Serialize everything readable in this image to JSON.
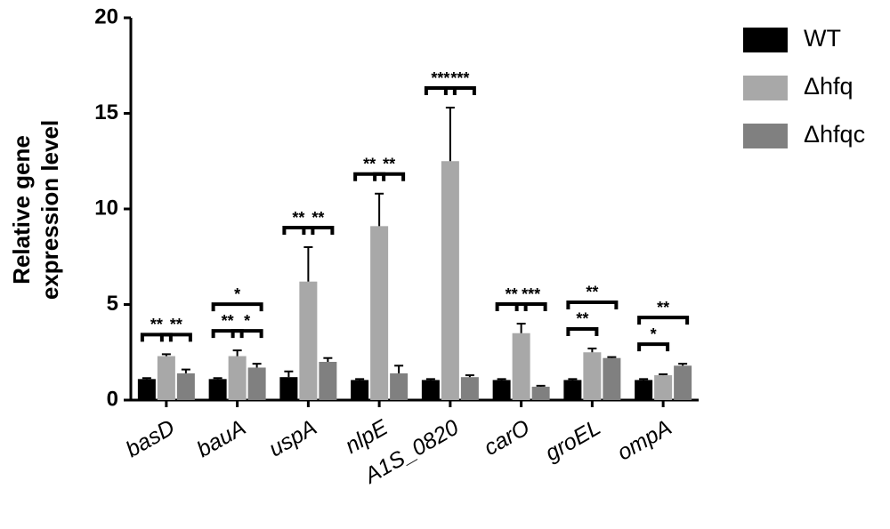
{
  "chart_data": {
    "type": "bar",
    "y_label": [
      "Relative gene",
      "expression level"
    ],
    "categories": [
      "basD",
      "bauA",
      "uspA",
      "nlpE",
      "A1S_0820",
      "carO",
      "groEL",
      "ompA"
    ],
    "series": [
      {
        "name": "WT",
        "color": "#000000",
        "values": [
          1.1,
          1.1,
          1.2,
          1.05,
          1.05,
          1.05,
          1.05,
          1.05
        ],
        "errors": [
          0.05,
          0.05,
          0.3,
          0.05,
          0.05,
          0.05,
          0.05,
          0.05
        ]
      },
      {
        "name": "Δhfq",
        "color": "#a8a8a8",
        "values": [
          2.3,
          2.3,
          6.2,
          9.1,
          12.5,
          3.5,
          2.5,
          1.3
        ],
        "errors": [
          0.1,
          0.3,
          1.8,
          1.7,
          2.8,
          0.5,
          0.2,
          0.05
        ]
      },
      {
        "name": "Δhfqc",
        "color": "#808080",
        "values": [
          1.4,
          1.7,
          2.0,
          1.4,
          1.2,
          0.7,
          2.2,
          1.8
        ],
        "errors": [
          0.2,
          0.2,
          0.2,
          0.4,
          0.1,
          0.05,
          0.05,
          0.1
        ]
      }
    ],
    "significance": [
      {
        "category": "basD",
        "pair": [
          "WT",
          "Δhfq"
        ],
        "label": "**"
      },
      {
        "category": "basD",
        "pair": [
          "Δhfq",
          "Δhfqc"
        ],
        "label": "**"
      },
      {
        "category": "bauA",
        "pair": [
          "WT",
          "Δhfq"
        ],
        "label": "**"
      },
      {
        "category": "bauA",
        "pair": [
          "Δhfq",
          "Δhfqc"
        ],
        "label": "*"
      },
      {
        "category": "bauA",
        "pair": [
          "WT",
          "Δhfqc"
        ],
        "label": "*"
      },
      {
        "category": "uspA",
        "pair": [
          "WT",
          "Δhfq"
        ],
        "label": "**"
      },
      {
        "category": "uspA",
        "pair": [
          "Δhfq",
          "Δhfqc"
        ],
        "label": "**"
      },
      {
        "category": "nlpE",
        "pair": [
          "WT",
          "Δhfq"
        ],
        "label": "**"
      },
      {
        "category": "nlpE",
        "pair": [
          "Δhfq",
          "Δhfqc"
        ],
        "label": "**"
      },
      {
        "category": "A1S_0820",
        "pair": [
          "WT",
          "Δhfq"
        ],
        "label": "***"
      },
      {
        "category": "A1S_0820",
        "pair": [
          "Δhfq",
          "Δhfqc"
        ],
        "label": "***"
      },
      {
        "category": "carO",
        "pair": [
          "WT",
          "Δhfq"
        ],
        "label": "**"
      },
      {
        "category": "carO",
        "pair": [
          "Δhfq",
          "Δhfqc"
        ],
        "label": "***"
      },
      {
        "category": "groEL",
        "pair": [
          "WT",
          "Δhfq"
        ],
        "label": "**"
      },
      {
        "category": "groEL",
        "pair": [
          "WT",
          "Δhfqc"
        ],
        "label": "**"
      },
      {
        "category": "ompA",
        "pair": [
          "WT",
          "Δhfq"
        ],
        "label": "*"
      },
      {
        "category": "ompA",
        "pair": [
          "WT",
          "Δhfqc"
        ],
        "label": "**"
      }
    ],
    "ylim": [
      0,
      20
    ],
    "yticks": [
      0,
      5,
      10,
      15,
      20
    ],
    "legend": "right"
  }
}
